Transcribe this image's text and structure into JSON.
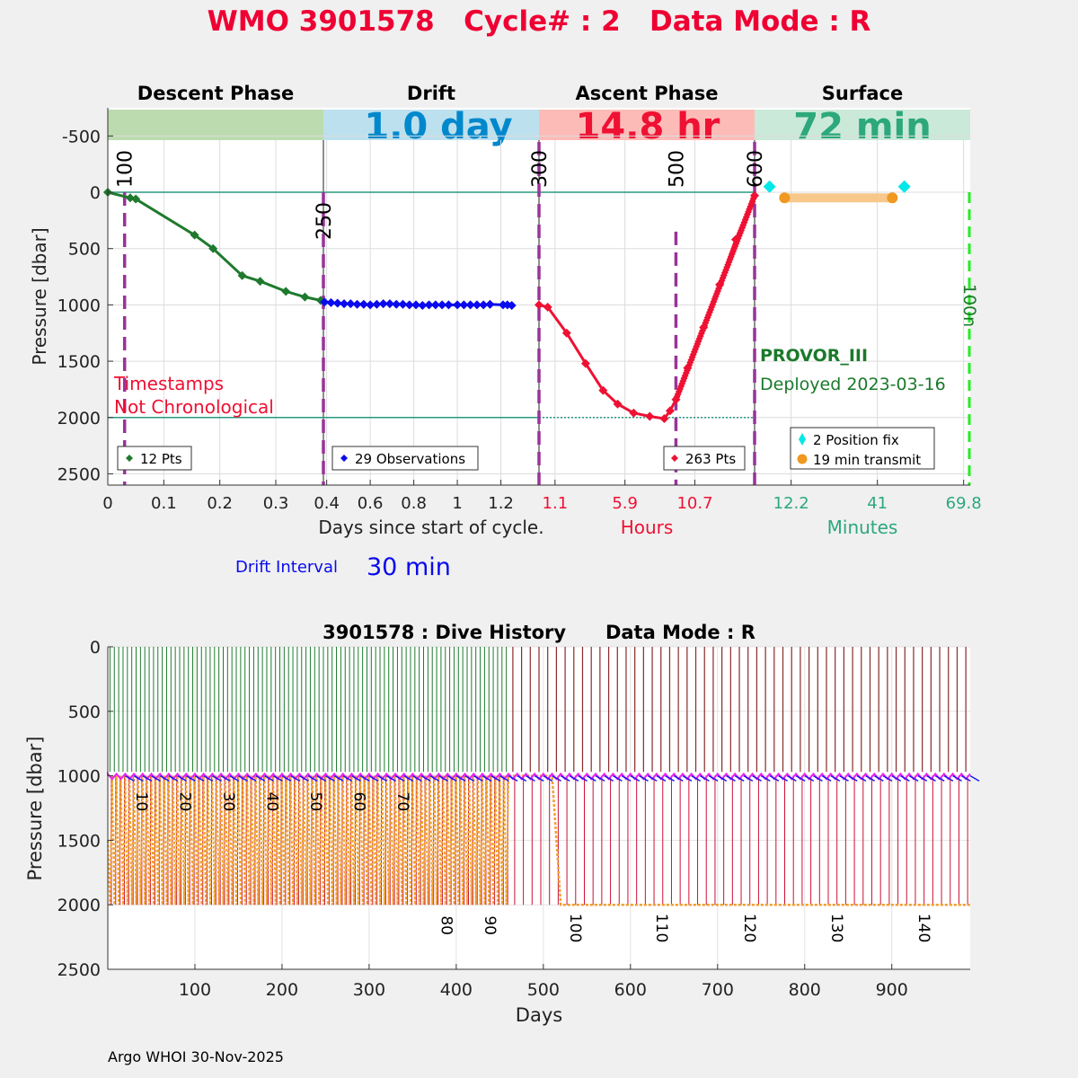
{
  "title": "WMO 3901578   Cycle# : 2   Data Mode : R",
  "footer": "Argo WHOI 30-Nov-2025",
  "colors": {
    "title": "#ee0033",
    "descent": "#1f7a2e",
    "drift": "#0a0aee",
    "ascent": "#ee1133",
    "surface_teal": "#2ca87c",
    "phase_band_descent": "#bcdcb0",
    "phase_band_drift": "#bde0ee",
    "phase_band_ascent": "#fdbbb8",
    "phase_band_surface": "#cbe9d9",
    "marker_purple": "#993399",
    "position_fix": "#00e8e8",
    "transmit": "#f09820",
    "transmit_bar": "#f7c88a",
    "drift_big": "#0088cc",
    "ascent_big": "#ee1133",
    "surface_big": "#2ca87c",
    "provor": "#1a7a2a",
    "hours_red": "#ee1133",
    "minutes_teal": "#2ca87c"
  },
  "chart_data": [
    {
      "type": "line",
      "name": "cycle-profile",
      "ylabel": "Pressure [dbar]",
      "ylim": [
        2600,
        -750
      ],
      "yticks": [
        -500,
        0,
        500,
        1000,
        1500,
        2000,
        2500
      ],
      "phases": [
        {
          "name": "Descent Phase",
          "band_label": "",
          "xlabel": "Days since start of cycle.",
          "xticks": [
            "0",
            "0.1",
            "0.2",
            "0.3"
          ],
          "xlim": [
            0,
            0.385
          ],
          "tick_values": [
            0,
            0.1,
            0.2,
            0.3
          ]
        },
        {
          "name": "Drift",
          "band_label": "1.0 day",
          "xticks": [
            "0.4",
            "0.6",
            "0.8",
            "1",
            "1.2"
          ],
          "xlim": [
            0.385,
            1.375
          ],
          "tick_values": [
            0.4,
            0.6,
            0.8,
            1.0,
            1.2
          ]
        },
        {
          "name": "Ascent Phase",
          "band_label": "14.8 hr",
          "xlabel": "Hours",
          "xticks": [
            "1.1",
            "5.9",
            "10.7"
          ],
          "xlim": [
            0.0,
            14.8
          ],
          "tick_values": [
            1.1,
            5.9,
            10.7
          ]
        },
        {
          "name": "Surface",
          "band_label": "72 min",
          "xlabel": "Minutes",
          "xticks": [
            "12.2",
            "41",
            "69.8"
          ],
          "xlim": [
            0,
            72
          ],
          "tick_values": [
            12.2,
            41,
            69.8
          ]
        }
      ],
      "descent_series": {
        "x": [
          0.0,
          0.04,
          0.05,
          0.155,
          0.188,
          0.24,
          0.272,
          0.318,
          0.352,
          0.38
        ],
        "y": [
          0,
          50,
          60,
          380,
          500,
          740,
          790,
          880,
          930,
          960
        ]
      },
      "drift_series": {
        "x": [
          0.39,
          0.42,
          0.45,
          0.48,
          0.51,
          0.54,
          0.57,
          0.6,
          0.63,
          0.66,
          0.69,
          0.72,
          0.75,
          0.78,
          0.81,
          0.84,
          0.87,
          0.9,
          0.93,
          0.96,
          1.0,
          1.03,
          1.06,
          1.09,
          1.12,
          1.15,
          1.21,
          1.23,
          1.25
        ],
        "y": [
          975,
          980,
          985,
          990,
          990,
          995,
          995,
          1000,
          995,
          990,
          990,
          995,
          995,
          1000,
          1000,
          1005,
          1000,
          1000,
          1000,
          1000,
          1000,
          1000,
          1000,
          1000,
          1000,
          995,
          1000,
          1000,
          1005
        ]
      },
      "ascent_series": {
        "x": [
          0.0,
          0.6,
          1.9,
          3.2,
          4.4,
          5.4,
          6.5,
          7.6,
          8.6,
          9.0,
          9.4,
          10.2,
          11.3,
          12.4,
          13.5,
          14.8
        ],
        "y": [
          1000,
          1020,
          1250,
          1520,
          1760,
          1880,
          1960,
          1990,
          2010,
          1940,
          1840,
          1560,
          1200,
          820,
          420,
          30
        ]
      },
      "surface_fix": {
        "x": [
          5,
          50
        ],
        "y": [
          -50,
          -50
        ]
      },
      "surface_transmit": {
        "x": [
          10,
          46
        ],
        "y": [
          50,
          50
        ]
      },
      "cycle_markers": [
        {
          "label": "100",
          "axis": "descent",
          "x": 0.03
        },
        {
          "label": "250",
          "axis": "drift",
          "x": 0.385
        },
        {
          "label": "300",
          "axis": "ascent",
          "x": 0.0
        },
        {
          "label": "500",
          "axis": "ascent",
          "x": 9.4
        },
        {
          "label": "600",
          "axis": "ascent",
          "x": 14.8
        },
        {
          "label": "100n",
          "axis": "surface",
          "x": 72
        }
      ],
      "legends": {
        "descent": "12 Pts",
        "drift": "29 Observations",
        "ascent": "263 Pts",
        "surface_fix": "2 Position fix",
        "surface_transmit": "19 min transmit"
      },
      "notes": {
        "timestamps_1": "Timestamps",
        "timestamps_2": "Not Chronological",
        "float_type": "PROVOR_III",
        "deployed": "Deployed 2023-03-16",
        "drift_interval_label": "Drift Interval",
        "drift_interval_value": "30 min"
      }
    },
    {
      "type": "line",
      "name": "dive-history",
      "title": "3901578 : Dive History      Data Mode : R",
      "xlabel": "Days",
      "ylabel": "Pressure [dbar]",
      "xlim": [
        0,
        990
      ],
      "ylim": [
        0,
        2500
      ],
      "xticks": [
        100,
        200,
        300,
        400,
        500,
        600,
        700,
        800,
        900
      ],
      "yticks": [
        0,
        500,
        1000,
        1500,
        2000,
        2500
      ],
      "cycle_labels": [
        {
          "label": "10",
          "x": 33,
          "y": 1200
        },
        {
          "label": "20",
          "x": 83,
          "y": 1200
        },
        {
          "label": "30",
          "x": 133,
          "y": 1200
        },
        {
          "label": "40",
          "x": 183,
          "y": 1200
        },
        {
          "label": "50",
          "x": 233,
          "y": 1200
        },
        {
          "label": "60",
          "x": 283,
          "y": 1200
        },
        {
          "label": "70",
          "x": 333,
          "y": 1200
        },
        {
          "label": "80",
          "x": 383,
          "y": 2160
        },
        {
          "label": "90",
          "x": 433,
          "y": 2160
        },
        {
          "label": "100",
          "x": 531,
          "y": 2180
        },
        {
          "label": "110",
          "x": 630,
          "y": 2180
        },
        {
          "label": "120",
          "x": 731,
          "y": 2180
        },
        {
          "label": "130",
          "x": 831,
          "y": 2180
        },
        {
          "label": "140",
          "x": 931,
          "y": 2180
        }
      ],
      "phase_one_cycle_days": 5,
      "phase_one_end_day": 460,
      "phase_two_cycle_days": 10,
      "phase_two_end_day": 990,
      "drift_pressure": 1000,
      "deep_pressure_phase_one": 2000,
      "deep_pressure_phase_two": 2000
    }
  ]
}
